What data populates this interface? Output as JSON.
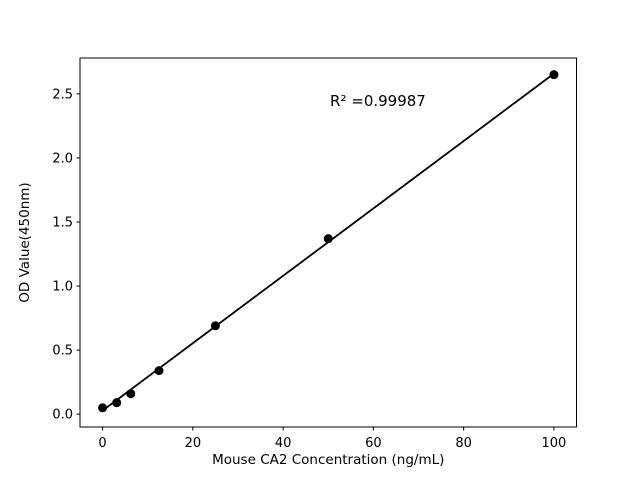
{
  "figure": {
    "background_color": "#ffffff",
    "foreground_color": "#000000"
  },
  "chart_data": {
    "type": "scatter",
    "title": "",
    "xlabel": "Mouse CA2 Concentration (ng/mL)",
    "ylabel": "OD Value(450nm)",
    "points": [
      {
        "x": 0,
        "y": 0.05
      },
      {
        "x": 3.125,
        "y": 0.09
      },
      {
        "x": 6.25,
        "y": 0.16
      },
      {
        "x": 12.5,
        "y": 0.34
      },
      {
        "x": 25,
        "y": 0.69
      },
      {
        "x": 50,
        "y": 1.37
      },
      {
        "x": 100,
        "y": 2.65
      }
    ],
    "fit_line": {
      "type": "linear",
      "slope": 0.0263,
      "intercept": 0.028,
      "x_start": 0,
      "x_end": 100,
      "r_squared": 0.99987
    },
    "annotation": {
      "text": "R² =0.99987",
      "x": 50.4,
      "y": 2.405
    },
    "x_ticks": {
      "values": [
        0,
        20,
        40,
        60,
        80,
        100
      ],
      "labels": [
        "0",
        "20",
        "40",
        "60",
        "80",
        "100"
      ]
    },
    "y_ticks": {
      "values": [
        0.0,
        0.5,
        1.0,
        1.5,
        2.0,
        2.5
      ],
      "labels": [
        "0.0",
        "0.5",
        "1.0",
        "1.5",
        "2.0",
        "2.5"
      ]
    },
    "xlim": [
      -5,
      105
    ],
    "ylim": [
      -0.1,
      2.78
    ],
    "grid": false,
    "legend_position": "none",
    "marker_color": "#000000",
    "marker_radius": 4.5,
    "line_color": "#000000",
    "line_width": 1.8
  }
}
